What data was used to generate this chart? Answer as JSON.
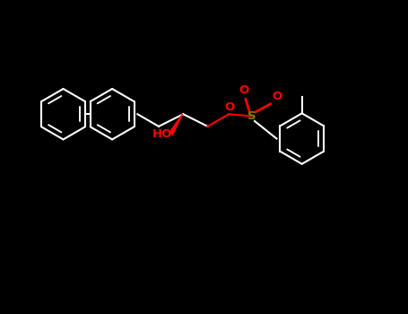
{
  "bg_color": "#000000",
  "bond_color": "#ffffff",
  "oxygen_color": "#ff0000",
  "sulfur_color": "#808000",
  "lw": 1.5,
  "fig_width": 4.55,
  "fig_height": 3.5,
  "dpi": 100,
  "xlim": [
    0,
    10
  ],
  "ylim": [
    0,
    7
  ]
}
